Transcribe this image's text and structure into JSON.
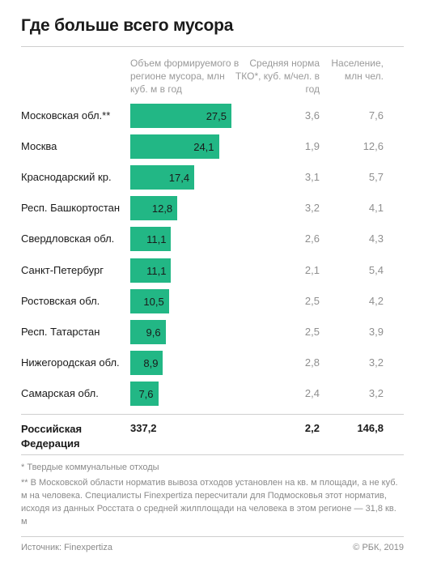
{
  "title": "Где больше всего мусора",
  "headers": {
    "volume": "Объем формируемого в регионе мусора, млн куб. м в год",
    "norm": "Средняя норма ТКО*, куб. м/чел. в год",
    "population": "Население, млн чел."
  },
  "chart_data": {
    "type": "bar",
    "orientation": "horizontal",
    "title": "Где больше всего мусора",
    "categories": [
      "Московская обл.**",
      "Москва",
      "Краснодарский кр.",
      "Респ. Башкортостан",
      "Свердловская обл.",
      "Санкт-Петербург",
      "Ростовская обл.",
      "Респ. Татарстан",
      "Нижегородская обл.",
      "Самарская обл."
    ],
    "series": [
      {
        "name": "Объем формируемого в регионе мусора, млн куб. м в год",
        "values": [
          27.5,
          24.1,
          17.4,
          12.8,
          11.1,
          11.1,
          10.5,
          9.6,
          8.9,
          7.6
        ]
      }
    ],
    "value_labels": [
      "27,5",
      "24,1",
      "17,4",
      "12,8",
      "11,1",
      "11,1",
      "10,5",
      "9,6",
      "8,9",
      "7,6"
    ],
    "norm_labels": [
      "3,6",
      "1,9",
      "3,1",
      "3,2",
      "2,6",
      "2,1",
      "2,5",
      "2,5",
      "2,8",
      "2,4"
    ],
    "population_labels": [
      "7,6",
      "12,6",
      "5,7",
      "4,1",
      "4,3",
      "5,4",
      "4,2",
      "3,9",
      "3,2",
      "3,2"
    ],
    "xlim": [
      0,
      27.5
    ],
    "bar_color": "#22b785",
    "grid": false
  },
  "total": {
    "region": "Российская Федерация",
    "volume": "337,2",
    "norm": "2,2",
    "population": "146,8"
  },
  "footnotes": {
    "note1": "* Твердые коммунальные отходы",
    "note2": "** В Московской области норматив вывоза отходов установлен на кв. м площади, а не куб. м на человека. Специалисты Finexpertiza пересчитали для Подмосковья этот норматив, исходя из данных Росстата о средней жилплощади на человека в этом регионе — 31,8 кв. м"
  },
  "source": "Источник: Finexpertiza",
  "copyright": "© РБК, 2019"
}
